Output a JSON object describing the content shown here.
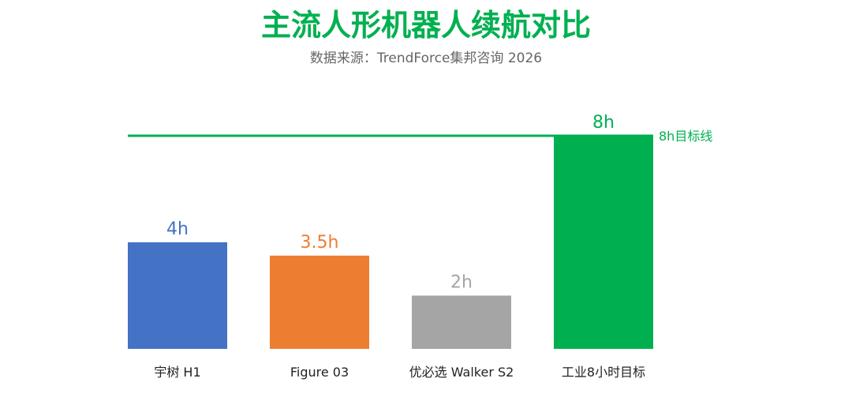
{
  "title": "主流人形机器人续航对比",
  "subtitle": "数据来源：TrendForce集邦咨询 2026",
  "colors": {
    "title": "#00b050",
    "subtitle": "#666666",
    "axis_label": "#222222",
    "target_line": "#00b050"
  },
  "chart_data": {
    "type": "bar",
    "title": "主流人形机器人续航对比",
    "subtitle": "数据来源：TrendForce集邦咨询 2026",
    "xlabel": "",
    "ylabel": "",
    "categories": [
      "宇树 H1",
      "Figure 03",
      "优必选 Walker S2",
      "工业8小时目标"
    ],
    "values": [
      4,
      3.5,
      2,
      8
    ],
    "data_labels": [
      "4h",
      "3.5h",
      "2h",
      "8h"
    ],
    "bar_colors": [
      "#4472c4",
      "#ed7d31",
      "#a5a5a5",
      "#00b050"
    ],
    "ylim": [
      0,
      8
    ],
    "grid": false,
    "legend": "none",
    "reference_line": {
      "value": 8,
      "label": "8h目标线",
      "color": "#00b050"
    }
  }
}
